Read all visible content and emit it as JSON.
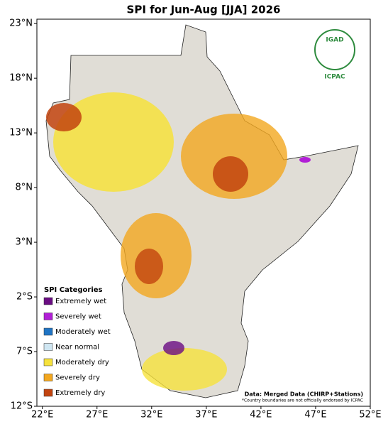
{
  "map": {
    "title": "SPI for Jun-Aug [JJA] 2026",
    "xlim": [
      21.5,
      52
    ],
    "ylim": [
      -12,
      23.4
    ],
    "xticks": [
      {
        "value": 22,
        "label": "22°E"
      },
      {
        "value": 27,
        "label": "27°E"
      },
      {
        "value": 32,
        "label": "32°E"
      },
      {
        "value": 37,
        "label": "37°E"
      },
      {
        "value": 42,
        "label": "42°E"
      },
      {
        "value": 47,
        "label": "47°E"
      },
      {
        "value": 52,
        "label": "52°E"
      }
    ],
    "yticks": [
      {
        "value": 23,
        "label": "23°N"
      },
      {
        "value": 18,
        "label": "18°N"
      },
      {
        "value": 13,
        "label": "13°N"
      },
      {
        "value": 8,
        "label": "8°N"
      },
      {
        "value": 3,
        "label": "3°N"
      },
      {
        "value": -2,
        "label": "2°S"
      },
      {
        "value": -7,
        "label": "7°S"
      },
      {
        "value": -12,
        "label": "12°S"
      }
    ],
    "legend": {
      "title": "SPI Categories",
      "entries": [
        {
          "name": "Extremely wet",
          "color": "#6a0d83"
        },
        {
          "name": "Severely wet",
          "color": "#b11fd6"
        },
        {
          "name": "Moderately wet",
          "color": "#1f74c4"
        },
        {
          "name": "Near normal",
          "color": "#cfe6f2"
        },
        {
          "name": "Moderately dry",
          "color": "#f6e23c"
        },
        {
          "name": "Severely dry",
          "color": "#f3a71f"
        },
        {
          "name": "Extremely dry",
          "color": "#c2440f"
        }
      ]
    },
    "logo": {
      "top": "IGAD",
      "bottom": "ICPAC"
    },
    "source": "Data: Merged Data (CHIRP+Stations)",
    "disclaimer": "*Country boundaries are not officially endorsed by ICPAC"
  }
}
